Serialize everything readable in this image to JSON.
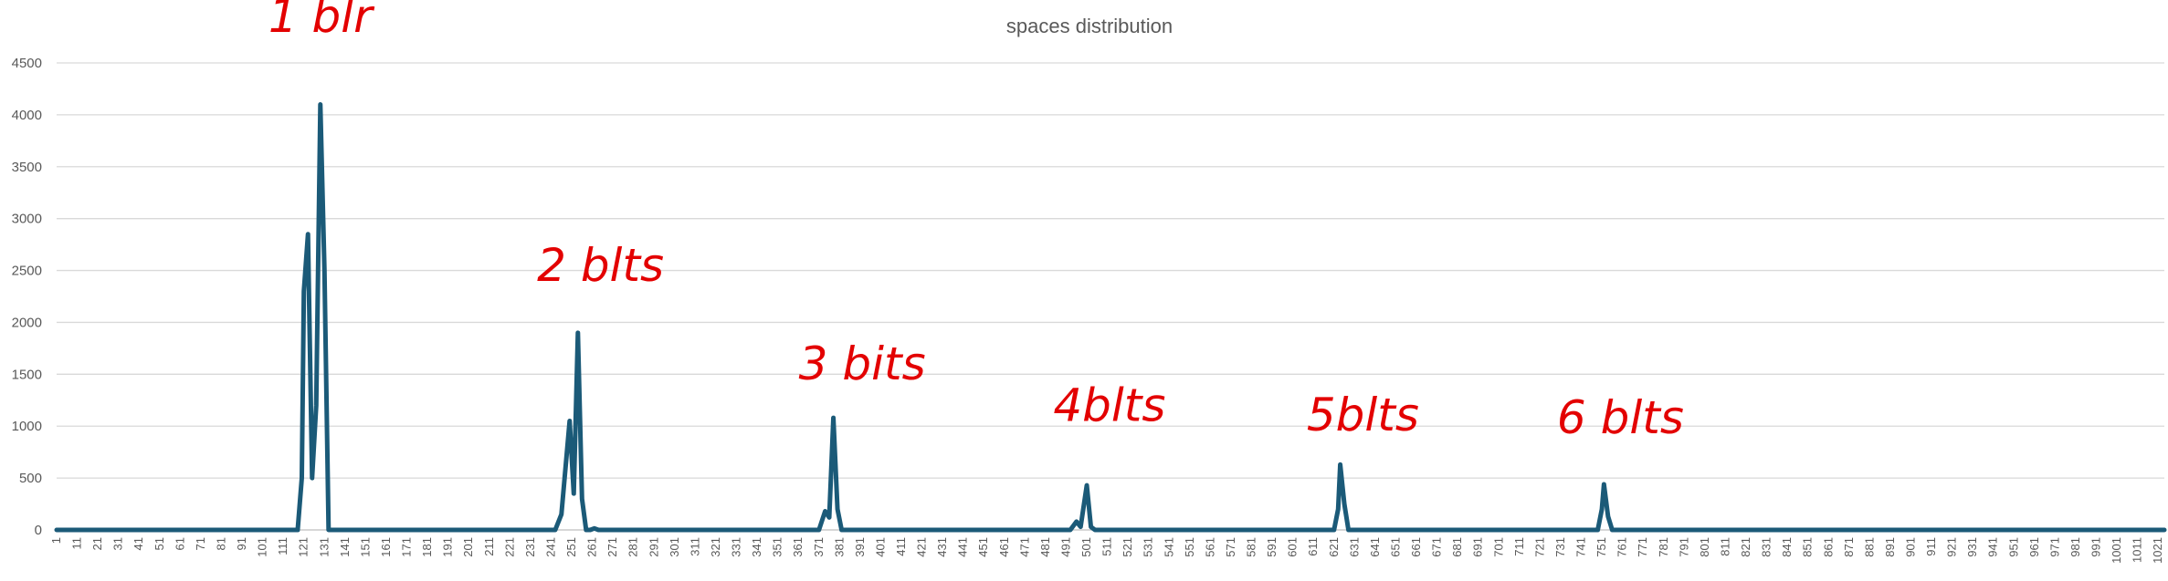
{
  "chart_data": {
    "type": "line",
    "title": "spaces distribution",
    "xlabel": "",
    "ylabel": "",
    "ylim": [
      0,
      4500
    ],
    "yticks": [
      0,
      500,
      1000,
      1500,
      2000,
      2500,
      3000,
      3500,
      4000,
      4500
    ],
    "xlim": [
      1,
      1024
    ],
    "xtick_start": 1,
    "xtick_step": 10,
    "xtick_end": 1021,
    "grid": true,
    "legend": "none",
    "series_color": "#1b5a78",
    "series": [
      {
        "points": [
          [
            1,
            0
          ],
          [
            118,
            0
          ],
          [
            120,
            500
          ],
          [
            121,
            2300
          ],
          [
            123,
            2850
          ],
          [
            125,
            500
          ],
          [
            127,
            1200
          ],
          [
            129,
            4100
          ],
          [
            131,
            2500
          ],
          [
            133,
            0
          ],
          [
            243,
            0
          ],
          [
            246,
            150
          ],
          [
            250,
            1050
          ],
          [
            252,
            350
          ],
          [
            254,
            1900
          ],
          [
            256,
            300
          ],
          [
            258,
            0
          ],
          [
            260,
            0
          ],
          [
            262,
            15
          ],
          [
            264,
            0
          ],
          [
            371,
            0
          ],
          [
            374,
            180
          ],
          [
            376,
            120
          ],
          [
            378,
            1080
          ],
          [
            380,
            200
          ],
          [
            382,
            0
          ],
          [
            493,
            0
          ],
          [
            496,
            80
          ],
          [
            498,
            30
          ],
          [
            501,
            430
          ],
          [
            503,
            30
          ],
          [
            505,
            0
          ],
          [
            621,
            0
          ],
          [
            623,
            200
          ],
          [
            624,
            630
          ],
          [
            626,
            250
          ],
          [
            628,
            0
          ],
          [
            749,
            0
          ],
          [
            751,
            200
          ],
          [
            752,
            440
          ],
          [
            754,
            130
          ],
          [
            756,
            0
          ],
          [
            1024,
            0
          ]
        ]
      }
    ],
    "annotations": [
      {
        "text": "1 blr",
        "x": 129,
        "y": 4800
      },
      {
        "text": "2 blts",
        "x": 265,
        "y": 2400
      },
      {
        "text": "3 bits",
        "x": 392,
        "y": 1450
      },
      {
        "text": "4blts",
        "x": 512,
        "y": 1050
      },
      {
        "text": "5blts",
        "x": 635,
        "y": 960
      },
      {
        "text": "6 blts",
        "x": 760,
        "y": 930
      }
    ]
  }
}
